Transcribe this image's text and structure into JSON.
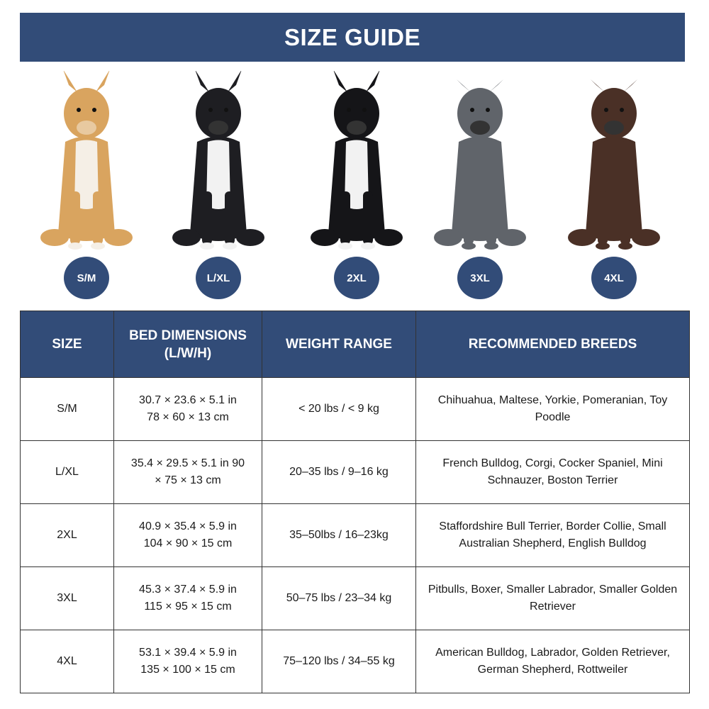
{
  "title": "SIZE GUIDE",
  "dogs": [
    {
      "size": "S/M",
      "icon": "chihuahua-image",
      "color": "#d9a45f"
    },
    {
      "size": "L/XL",
      "icon": "french-bulldog-image",
      "color": "#1e1e22"
    },
    {
      "size": "2XL",
      "icon": "border-collie-image",
      "color": "#151518"
    },
    {
      "size": "3XL",
      "icon": "pitbull-image",
      "color": "#60646a"
    },
    {
      "size": "4XL",
      "icon": "labrador-image",
      "color": "#4a3026"
    }
  ],
  "table": {
    "headers": [
      "SIZE",
      "BED DIMENSIONS (L/W/H)",
      "WEIGHT RANGE",
      "RECOMMENDED BREEDS"
    ],
    "rows": [
      {
        "size": "S/M",
        "dim_in": "30.7 × 23.6 × 5.1 in",
        "dim_cm": "78 × 60 × 13 cm",
        "weight": "< 20 lbs / < 9 kg",
        "breeds": "Chihuahua, Maltese, Yorkie, Pomeranian, Toy Poodle"
      },
      {
        "size": "L/XL",
        "dim_in": "35.4 × 29.5 × 5.1 in 90",
        "dim_cm": "× 75 × 13 cm",
        "weight": "20–35 lbs / 9–16 kg",
        "breeds": "French Bulldog, Corgi, Cocker Spaniel, Mini Schnauzer, Boston Terrier"
      },
      {
        "size": "2XL",
        "dim_in": "40.9 × 35.4 × 5.9 in",
        "dim_cm": "104 × 90 × 15 cm",
        "weight": "35–50lbs / 16–23kg",
        "breeds": "Staffordshire Bull Terrier, Border Collie, Small Australian Shepherd, English Bulldog"
      },
      {
        "size": "3XL",
        "dim_in": "45.3 × 37.4 × 5.9 in",
        "dim_cm": "115 × 95 × 15 cm",
        "weight": "50–75 lbs / 23–34 kg",
        "breeds": "Pitbulls, Boxer, Smaller Labrador, Smaller Golden Retriever"
      },
      {
        "size": "4XL",
        "dim_in": "53.1 × 39.4 × 5.9 in",
        "dim_cm": "135 × 100 × 15 cm",
        "weight": "75–120 lbs / 34–55 kg",
        "breeds": "American Bulldog, Labrador, Golden Retriever, German Shepherd, Rottweiler"
      }
    ]
  }
}
